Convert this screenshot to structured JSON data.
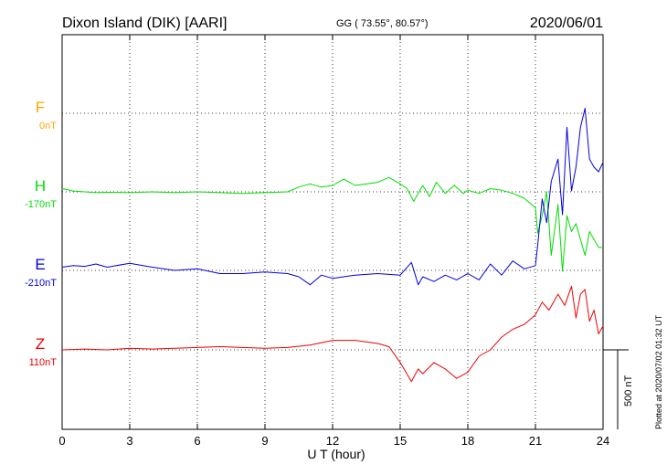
{
  "header": {
    "station": "Dixon Island (DIK)  [AARI]",
    "coords": "GG ( 73.55°,  80.57°)",
    "date": "2020/06/01"
  },
  "footer_note": "Plotted at 2020/07/02 01:32 UT",
  "scale_bar": {
    "label": "500 nT",
    "value_nT": 500
  },
  "colors": {
    "F": "#ffa500",
    "H": "#00dd00",
    "E": "#0000dd",
    "Z": "#ee0000"
  },
  "chart_data": {
    "type": "line",
    "xlabel": "U T (hour)",
    "xlim": [
      0,
      24
    ],
    "x_ticks": [
      "0",
      "3",
      "6",
      "9",
      "12",
      "15",
      "18",
      "21",
      "24"
    ],
    "grid": true,
    "channels": [
      {
        "name": "F",
        "baseline": "0nT",
        "color": "#ffa500",
        "x": [],
        "values": []
      },
      {
        "name": "H",
        "baseline": "-170nT",
        "color": "#00dd00",
        "x": [
          0,
          0.5,
          1,
          1.5,
          2,
          3,
          4,
          5,
          6,
          7,
          8,
          9,
          10,
          10.5,
          11,
          11.5,
          12,
          12.5,
          13,
          14,
          14.5,
          15,
          15.3,
          15.6,
          16,
          16.3,
          16.6,
          17,
          17.4,
          17.8,
          18,
          18.5,
          19,
          19.5,
          20,
          20.5,
          21,
          21.1,
          21.3,
          21.5,
          21.7,
          22,
          22.2,
          22.4,
          22.6,
          22.8,
          23,
          23.2,
          23.4,
          23.6,
          23.8,
          24
        ],
        "values": [
          20,
          5,
          0,
          -5,
          -3,
          -5,
          0,
          -5,
          0,
          -5,
          -10,
          -5,
          0,
          30,
          50,
          30,
          40,
          80,
          40,
          60,
          90,
          50,
          20,
          -60,
          40,
          -30,
          60,
          -10,
          40,
          -10,
          10,
          -10,
          20,
          10,
          -10,
          -40,
          -100,
          -260,
          -150,
          0,
          -400,
          -80,
          -500,
          -150,
          -250,
          -200,
          -300,
          -400,
          -250,
          -300,
          -350,
          -350
        ]
      },
      {
        "name": "E",
        "baseline": "-210nT",
        "color": "#0000dd",
        "x": [
          0,
          0.5,
          1,
          1.5,
          2,
          3,
          4,
          5,
          6,
          7,
          8,
          9,
          10,
          10.5,
          11,
          11.5,
          12,
          13,
          14,
          15,
          15.5,
          15.8,
          16,
          16.5,
          17,
          17.5,
          18,
          18.5,
          19,
          19.5,
          20,
          20.5,
          21,
          21.1,
          21.3,
          21.5,
          21.7,
          22,
          22.2,
          22.4,
          22.6,
          22.8,
          23,
          23.2,
          23.4,
          23.6,
          23.8,
          24
        ],
        "values": [
          20,
          30,
          25,
          40,
          20,
          45,
          20,
          0,
          10,
          -20,
          -20,
          -10,
          -20,
          -40,
          -90,
          -30,
          -50,
          -30,
          -20,
          -30,
          50,
          -90,
          -40,
          -70,
          -30,
          -60,
          -20,
          -60,
          40,
          -30,
          60,
          10,
          30,
          160,
          450,
          300,
          560,
          700,
          350,
          900,
          500,
          650,
          900,
          1020,
          700,
          650,
          620,
          680
        ]
      },
      {
        "name": "Z",
        "baseline": "110nT",
        "color": "#ee0000",
        "x": [
          0,
          1,
          2,
          3,
          4,
          5,
          6,
          7,
          8,
          9,
          10,
          11,
          12,
          13,
          14,
          14.5,
          15,
          15.5,
          15.8,
          16,
          16.5,
          17,
          17.5,
          18,
          18.5,
          19,
          19.5,
          20,
          20.5,
          21,
          21.3,
          21.6,
          22,
          22.3,
          22.6,
          22.8,
          23,
          23.2,
          23.4,
          23.6,
          23.8,
          24
        ],
        "values": [
          0,
          5,
          0,
          10,
          5,
          10,
          15,
          20,
          15,
          10,
          15,
          30,
          60,
          60,
          40,
          20,
          -80,
          -200,
          -120,
          -150,
          -80,
          -120,
          -180,
          -140,
          -40,
          0,
          80,
          130,
          160,
          220,
          300,
          250,
          350,
          280,
          400,
          200,
          350,
          380,
          180,
          250,
          100,
          150
        ]
      }
    ]
  }
}
